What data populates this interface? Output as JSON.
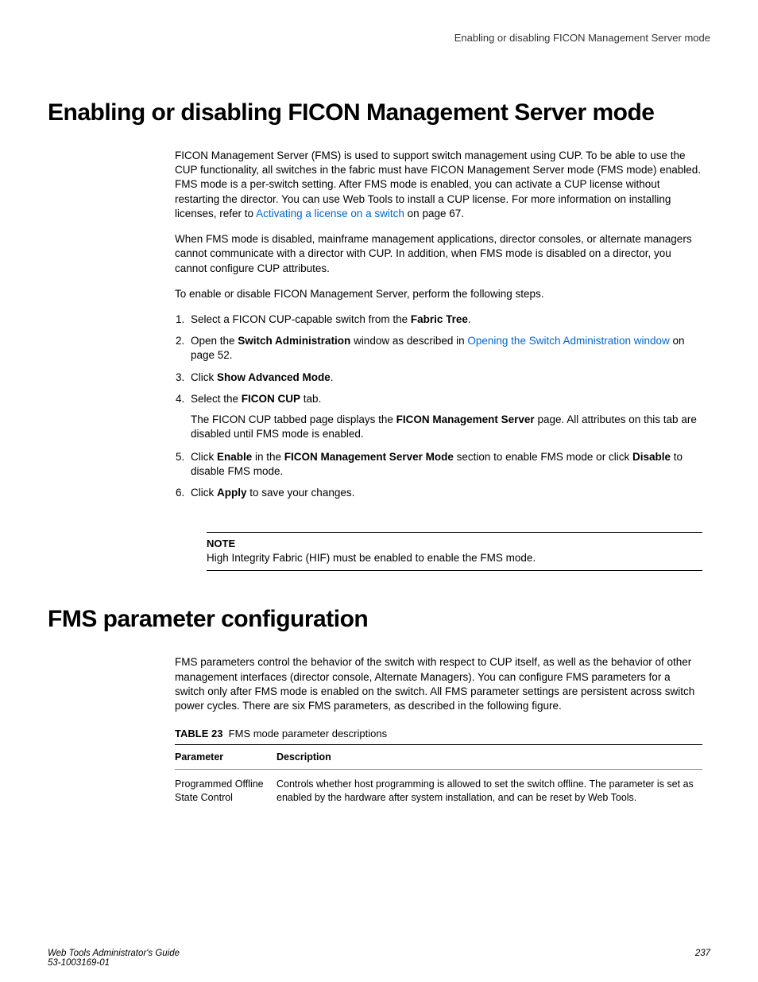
{
  "runningHead": "Enabling or disabling FICON Management Server mode",
  "section1": {
    "title": "Enabling or disabling FICON Management Server mode",
    "para1a": "FICON Management Server (FMS) is used to support switch management using CUP. To be able to use the CUP functionality, all switches in the fabric must have FICON Management Server mode (FMS mode) enabled. FMS mode is a per-switch setting. After FMS mode is enabled, you can activate a CUP license without restarting the director. You can use Web Tools to install a CUP license. For more information on installing licenses, refer to ",
    "link1": "Activating a license on a switch",
    "para1b": " on page 67.",
    "para2": "When FMS mode is disabled, mainframe management applications, director consoles, or alternate managers cannot communicate with a director with CUP. In addition, when FMS mode is disabled on a director, you cannot configure CUP attributes.",
    "para3": "To enable or disable FICON Management Server, perform the following steps.",
    "steps": {
      "s1a": "Select a FICON CUP-capable switch from the ",
      "s1b": "Fabric Tree",
      "s1c": ".",
      "s2a": "Open the ",
      "s2b": "Switch Administration",
      "s2c": " window as described in ",
      "s2link": "Opening the Switch Administration window",
      "s2d": " on page 52.",
      "s3a": "Click ",
      "s3b": "Show Advanced Mode",
      "s3c": ".",
      "s4a": "Select the ",
      "s4b": "FICON CUP",
      "s4c": " tab.",
      "s4suba": "The FICON CUP tabbed page displays the ",
      "s4subb": "FICON Management Server",
      "s4subc": " page. All attributes on this tab are disabled until FMS mode is enabled.",
      "s5a": "Click ",
      "s5b": "Enable",
      "s5c": " in the ",
      "s5d": "FICON Management Server Mode",
      "s5e": " section to enable FMS mode or click ",
      "s5f": "Disable",
      "s5g": " to disable FMS mode.",
      "s6a": "Click ",
      "s6b": "Apply",
      "s6c": " to save your changes."
    },
    "noteLabel": "NOTE",
    "noteText": "High Integrity Fabric (HIF) must be enabled to enable the FMS mode."
  },
  "section2": {
    "title": "FMS parameter configuration",
    "para1": "FMS parameters control the behavior of the switch with respect to CUP itself, as well as the behavior of other management interfaces (director console, Alternate Managers). You can configure FMS parameters for a switch only after FMS mode is enabled on the switch. All FMS parameter settings are persistent across switch power cycles. There are six FMS parameters, as described in the following figure.",
    "tableLabel": "TABLE 23",
    "tableCaption": "FMS mode parameter descriptions",
    "table": {
      "h1": "Parameter",
      "h2": "Description",
      "r1c1": "Programmed Offline State Control",
      "r1c2": "Controls whether host programming is allowed to set the switch offline. The parameter is set as enabled by the hardware after system installation, and can be reset by Web Tools."
    }
  },
  "footer": {
    "guide": "Web Tools Administrator's Guide",
    "docnum": "53-1003169-01",
    "page": "237"
  }
}
